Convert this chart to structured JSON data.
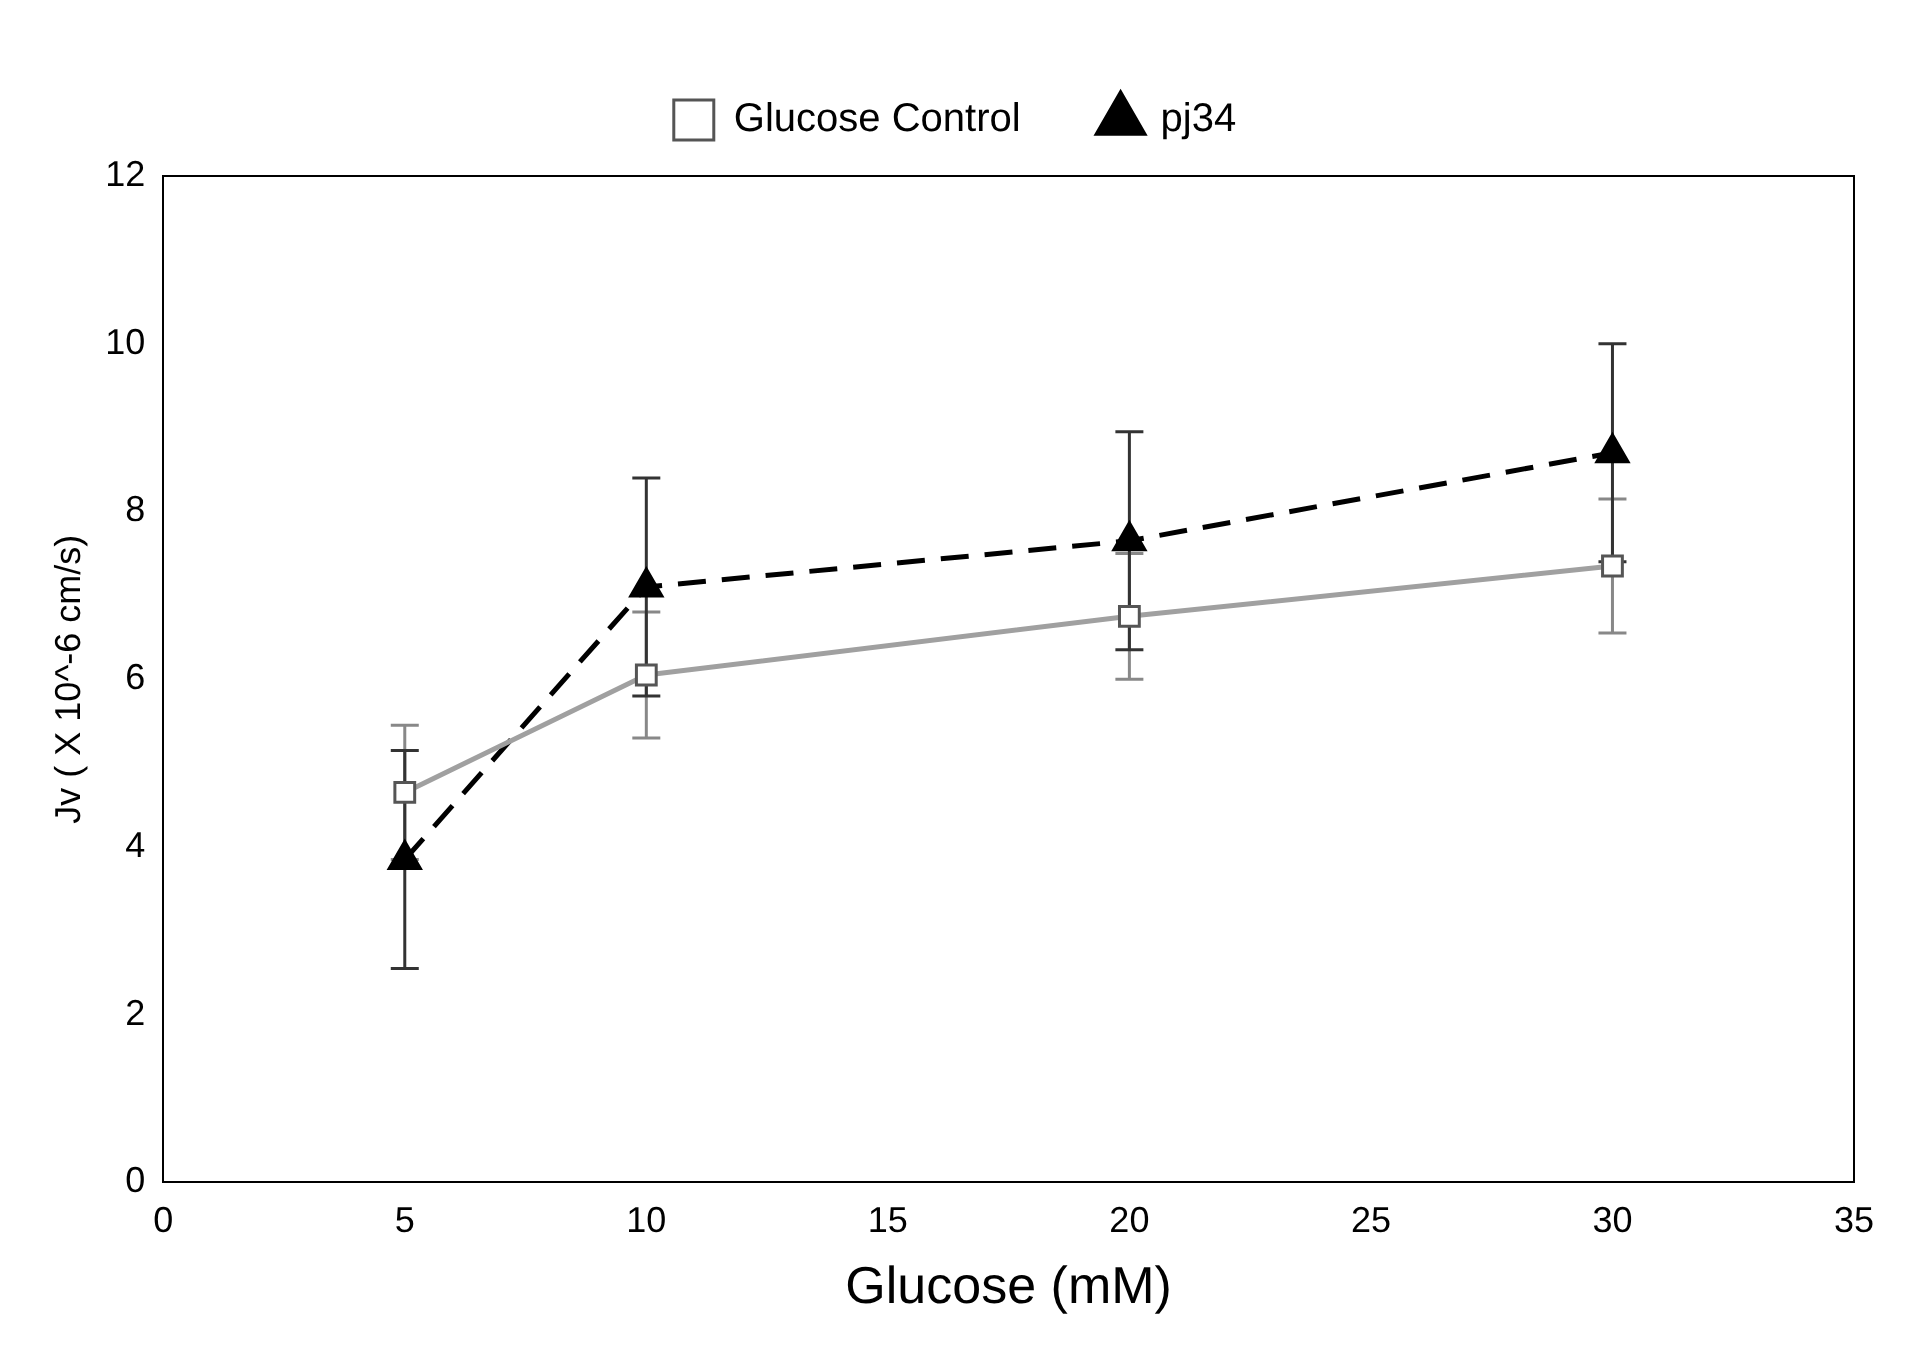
{
  "chart_data": {
    "type": "line",
    "xlabel": "Glucose (mM)",
    "ylabel": "Jv ( X 10^-6 cm/s)",
    "x": [
      5,
      10,
      20,
      30
    ],
    "series": [
      {
        "name": "Glucose Control",
        "color": "#a0a0a0",
        "values": [
          4.65,
          6.05,
          6.75,
          7.35
        ],
        "errors": [
          0.8,
          0.75,
          0.75,
          0.8
        ],
        "marker": "square",
        "line_style": "solid"
      },
      {
        "name": "pj34",
        "color": "#000000",
        "values": [
          3.85,
          7.1,
          7.65,
          8.7
        ],
        "errors": [
          1.3,
          1.3,
          1.3,
          1.3
        ],
        "marker": "triangle",
        "line_style": "dashed"
      }
    ],
    "xlim": [
      0,
      35
    ],
    "xticks": [
      0,
      5,
      10,
      15,
      20,
      25,
      30,
      35
    ],
    "ylim": [
      0,
      12
    ],
    "yticks": [
      0,
      2,
      4,
      6,
      8,
      10,
      12
    ],
    "grid": false,
    "legend": "top"
  }
}
